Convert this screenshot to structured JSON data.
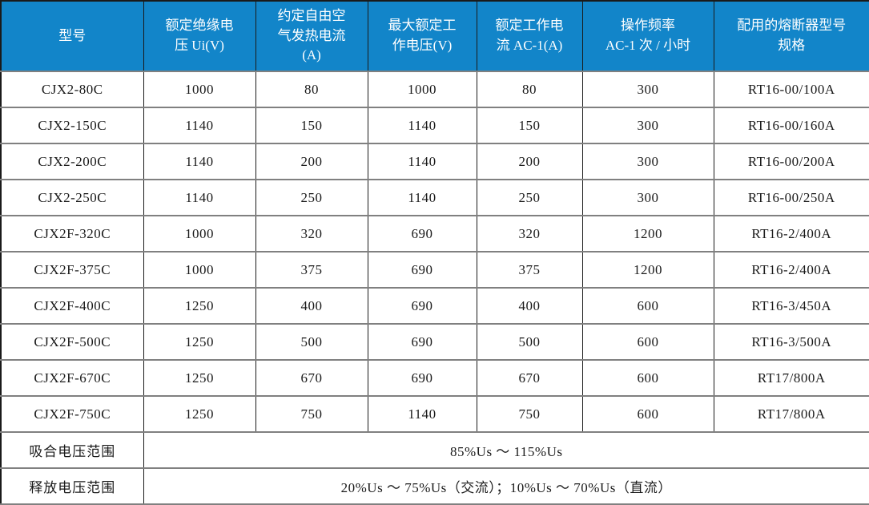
{
  "table": {
    "title_semantic": "contactor-specification-table",
    "colors": {
      "header_background": "#1285C9",
      "header_text": "#FFFFFF",
      "body_text": "#1A1A1A",
      "inner_horizontal_border": "#808080",
      "inner_vertical_border": "#1A1A1A",
      "outer_border": "#1A1A1A"
    },
    "columns": [
      {
        "key": "model",
        "label": "型号"
      },
      {
        "key": "ui",
        "label": "额定绝缘电\n压 Ui(V)"
      },
      {
        "key": "ith",
        "label": "约定自由空\n气发热电流\n(A)"
      },
      {
        "key": "uemax",
        "label": "最大额定工\n作电压(V)"
      },
      {
        "key": "ieac1",
        "label": "额定工作电\n流 AC-1(A)"
      },
      {
        "key": "freq",
        "label": "操作频率\nAC-1 次 / 小时"
      },
      {
        "key": "fuse",
        "label": "配用的熔断器型号\n规格"
      }
    ],
    "rows": [
      [
        "CJX2-80C",
        "1000",
        "80",
        "1000",
        "80",
        "300",
        "RT16-00/100A"
      ],
      [
        "CJX2-150C",
        "1140",
        "150",
        "1140",
        "150",
        "300",
        "RT16-00/160A"
      ],
      [
        "CJX2-200C",
        "1140",
        "200",
        "1140",
        "200",
        "300",
        "RT16-00/200A"
      ],
      [
        "CJX2-250C",
        "1140",
        "250",
        "1140",
        "250",
        "300",
        "RT16-00/250A"
      ],
      [
        "CJX2F-320C",
        "1000",
        "320",
        "690",
        "320",
        "1200",
        "RT16-2/400A"
      ],
      [
        "CJX2F-375C",
        "1000",
        "375",
        "690",
        "375",
        "1200",
        "RT16-2/400A"
      ],
      [
        "CJX2F-400C",
        "1250",
        "400",
        "690",
        "400",
        "600",
        "RT16-3/450A"
      ],
      [
        "CJX2F-500C",
        "1250",
        "500",
        "690",
        "500",
        "600",
        "RT16-3/500A"
      ],
      [
        "CJX2F-670C",
        "1250",
        "670",
        "690",
        "670",
        "600",
        "RT17/800A"
      ],
      [
        "CJX2F-750C",
        "1250",
        "750",
        "1140",
        "750",
        "600",
        "RT17/800A"
      ]
    ],
    "footer_rows": [
      {
        "label": "吸合电压范围",
        "value": "85%Us ～ 115%Us"
      },
      {
        "label": "释放电压范围",
        "value": "20%Us ～ 75%Us（交流）；10%Us ～ 70%Us（直流）"
      }
    ]
  }
}
